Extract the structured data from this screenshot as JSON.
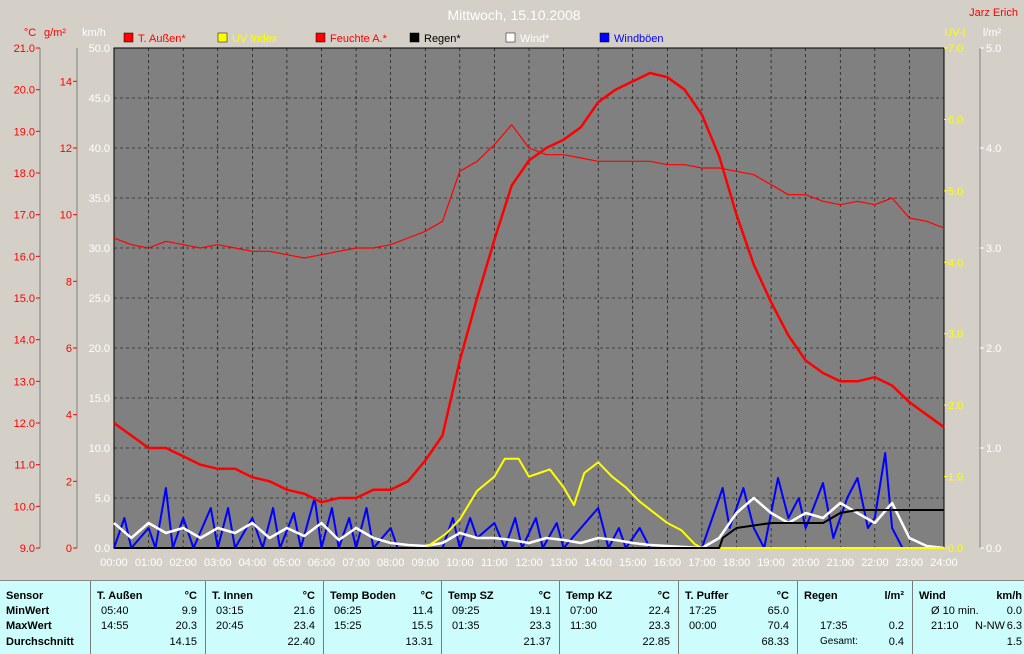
{
  "title": "Mittwoch, 15.10.2008",
  "author": "Jarz Erich",
  "axes": {
    "temp": {
      "unit": "°C",
      "ticks": [
        "21.0",
        "20.0",
        "19.0",
        "18.0",
        "17.0",
        "16.0",
        "15.0",
        "14.0",
        "13.0",
        "12.0",
        "11.0",
        "10.0",
        "9.0"
      ]
    },
    "humid": {
      "unit": "g/m²",
      "ticks": [
        "14",
        "12",
        "10",
        "8",
        "6",
        "4",
        "2",
        "0"
      ]
    },
    "wind": {
      "unit": "km/h",
      "ticks": [
        "50.0",
        "45.0",
        "40.0",
        "35.0",
        "30.0",
        "25.0",
        "20.0",
        "15.0",
        "10.0",
        "5.0",
        "0.0"
      ]
    },
    "uv": {
      "unit": "UV-I",
      "ticks": [
        "7.0",
        "6.0",
        "5.0",
        "4.0",
        "3.0",
        "2.0",
        "1.0",
        "0.0"
      ]
    },
    "rain": {
      "unit": "l/m²",
      "ticks": [
        "5.0",
        "4.0",
        "3.0",
        "2.0",
        "1.0",
        "0.0"
      ]
    },
    "time": [
      "00:00",
      "01:00",
      "02:00",
      "03:00",
      "04:00",
      "05:00",
      "06:00",
      "07:00",
      "08:00",
      "09:00",
      "10:00",
      "11:00",
      "12:00",
      "13:00",
      "14:00",
      "15:00",
      "16:00",
      "17:00",
      "18:00",
      "19:00",
      "20:00",
      "21:00",
      "22:00",
      "23:00",
      "24:00"
    ]
  },
  "legend": [
    {
      "label": "T. Außen*",
      "color": "#ff0000"
    },
    {
      "label": "UV Index",
      "color": "#ffff00"
    },
    {
      "label": "Feuchte A.*",
      "color": "#ff0000"
    },
    {
      "label": "Regen*",
      "color": "#000000"
    },
    {
      "label": "Wind*",
      "color": "#ffffff"
    },
    {
      "label": "Windböen",
      "color": "#0000ff"
    }
  ],
  "colors": {
    "temp": "#ff0000",
    "humid": "#ff0000",
    "uv": "#ffff00",
    "rain": "#000000",
    "wind": "#ffffff",
    "gust": "#0000ff",
    "plot_bg": "#808080",
    "stats_bg": "#ccfcfc"
  },
  "chart_data": {
    "type": "line",
    "title": "Mittwoch, 15.10.2008",
    "x_unit": "hours",
    "xlim": [
      0,
      24
    ],
    "series": [
      {
        "name": "T. Außen*",
        "axis": "temp",
        "color": "#ff0000",
        "points": [
          [
            0,
            12.0
          ],
          [
            0.5,
            11.7
          ],
          [
            1,
            11.4
          ],
          [
            1.5,
            11.4
          ],
          [
            2,
            11.2
          ],
          [
            2.5,
            11.0
          ],
          [
            3,
            10.9
          ],
          [
            3.5,
            10.9
          ],
          [
            4,
            10.7
          ],
          [
            4.5,
            10.6
          ],
          [
            5,
            10.4
          ],
          [
            5.5,
            10.3
          ],
          [
            6,
            10.1
          ],
          [
            6.5,
            10.2
          ],
          [
            7,
            10.2
          ],
          [
            7.5,
            10.4
          ],
          [
            8,
            10.4
          ],
          [
            8.5,
            10.6
          ],
          [
            9,
            11.1
          ],
          [
            9.5,
            11.7
          ],
          [
            10,
            13.5
          ],
          [
            10.5,
            15.0
          ],
          [
            11,
            16.4
          ],
          [
            11.5,
            17.7
          ],
          [
            12,
            18.3
          ],
          [
            12.5,
            18.6
          ],
          [
            13,
            18.8
          ],
          [
            13.5,
            19.1
          ],
          [
            14,
            19.7
          ],
          [
            14.5,
            20.0
          ],
          [
            15,
            20.2
          ],
          [
            15.5,
            20.4
          ],
          [
            16,
            20.3
          ],
          [
            16.5,
            20.0
          ],
          [
            17,
            19.4
          ],
          [
            17.5,
            18.4
          ],
          [
            18,
            17.0
          ],
          [
            18.5,
            15.8
          ],
          [
            19,
            14.9
          ],
          [
            19.5,
            14.1
          ],
          [
            20,
            13.5
          ],
          [
            20.5,
            13.2
          ],
          [
            21,
            13.0
          ],
          [
            21.5,
            13.0
          ],
          [
            22,
            13.1
          ],
          [
            22.5,
            12.9
          ],
          [
            23,
            12.5
          ],
          [
            23.5,
            12.2
          ],
          [
            24,
            11.9
          ]
        ]
      },
      {
        "name": "Feuchte A.*",
        "axis": "humid",
        "color": "#ff0000",
        "points": [
          [
            0,
            9.3
          ],
          [
            0.5,
            9.1
          ],
          [
            1,
            9.0
          ],
          [
            1.5,
            9.2
          ],
          [
            2,
            9.1
          ],
          [
            2.5,
            9.0
          ],
          [
            3,
            9.1
          ],
          [
            3.5,
            9.0
          ],
          [
            4,
            8.9
          ],
          [
            4.5,
            8.9
          ],
          [
            5,
            8.8
          ],
          [
            5.5,
            8.7
          ],
          [
            6,
            8.8
          ],
          [
            6.5,
            8.9
          ],
          [
            7,
            9.0
          ],
          [
            7.5,
            9.0
          ],
          [
            8,
            9.1
          ],
          [
            8.5,
            9.3
          ],
          [
            9,
            9.5
          ],
          [
            9.5,
            9.8
          ],
          [
            10,
            11.3
          ],
          [
            10.5,
            11.6
          ],
          [
            11,
            12.1
          ],
          [
            11.5,
            12.7
          ],
          [
            12,
            12.0
          ],
          [
            12.5,
            11.8
          ],
          [
            13,
            11.8
          ],
          [
            13.5,
            11.7
          ],
          [
            14,
            11.6
          ],
          [
            14.5,
            11.6
          ],
          [
            15,
            11.6
          ],
          [
            15.5,
            11.6
          ],
          [
            16,
            11.5
          ],
          [
            16.5,
            11.5
          ],
          [
            17,
            11.4
          ],
          [
            17.5,
            11.4
          ],
          [
            18,
            11.3
          ],
          [
            18.5,
            11.2
          ],
          [
            19,
            10.9
          ],
          [
            19.5,
            10.6
          ],
          [
            20,
            10.6
          ],
          [
            20.5,
            10.4
          ],
          [
            21,
            10.3
          ],
          [
            21.5,
            10.4
          ],
          [
            22,
            10.3
          ],
          [
            22.5,
            10.5
          ],
          [
            23,
            9.9
          ],
          [
            23.5,
            9.8
          ],
          [
            24,
            9.6
          ]
        ]
      },
      {
        "name": "UV Index",
        "axis": "uv",
        "color": "#ffff00",
        "points": [
          [
            0,
            0
          ],
          [
            9,
            0
          ],
          [
            9.3,
            0.1
          ],
          [
            9.6,
            0.2
          ],
          [
            10,
            0.4
          ],
          [
            10.5,
            0.8
          ],
          [
            11,
            1.0
          ],
          [
            11.3,
            1.25
          ],
          [
            11.7,
            1.25
          ],
          [
            12,
            1.0
          ],
          [
            12.3,
            1.05
          ],
          [
            12.6,
            1.1
          ],
          [
            13,
            0.85
          ],
          [
            13.3,
            0.6
          ],
          [
            13.6,
            1.05
          ],
          [
            14,
            1.2
          ],
          [
            14.4,
            1.0
          ],
          [
            14.8,
            0.85
          ],
          [
            15.2,
            0.65
          ],
          [
            15.6,
            0.5
          ],
          [
            16,
            0.35
          ],
          [
            16.4,
            0.25
          ],
          [
            16.8,
            0.05
          ],
          [
            17,
            0
          ],
          [
            24,
            0
          ]
        ]
      },
      {
        "name": "Regen*",
        "axis": "rain",
        "color": "#000000",
        "points": [
          [
            0,
            0
          ],
          [
            17.5,
            0
          ],
          [
            17.6,
            0.1
          ],
          [
            18,
            0.2
          ],
          [
            19,
            0.25
          ],
          [
            20,
            0.25
          ],
          [
            20.5,
            0.25
          ],
          [
            21,
            0.35
          ],
          [
            21.5,
            0.38
          ],
          [
            22,
            0.38
          ],
          [
            24,
            0.38
          ]
        ]
      },
      {
        "name": "Wind*",
        "axis": "wind",
        "color": "#ffffff",
        "points": [
          [
            0,
            2.5
          ],
          [
            0.5,
            1.0
          ],
          [
            1,
            2.5
          ],
          [
            1.5,
            1.5
          ],
          [
            2,
            2.0
          ],
          [
            2.5,
            1.0
          ],
          [
            3,
            2.0
          ],
          [
            3.5,
            1.5
          ],
          [
            4,
            2.5
          ],
          [
            4.5,
            1.0
          ],
          [
            5,
            2.0
          ],
          [
            5.5,
            1.2
          ],
          [
            6,
            2.5
          ],
          [
            6.5,
            0.8
          ],
          [
            7,
            2.0
          ],
          [
            7.5,
            1.0
          ],
          [
            8,
            0.5
          ],
          [
            8.5,
            0.3
          ],
          [
            9,
            0.2
          ],
          [
            9.5,
            0.5
          ],
          [
            10,
            1.5
          ],
          [
            10.5,
            1.0
          ],
          [
            11,
            1.0
          ],
          [
            11.5,
            0.8
          ],
          [
            12,
            0.5
          ],
          [
            12.5,
            1.0
          ],
          [
            13,
            0.8
          ],
          [
            13.5,
            0.5
          ],
          [
            14,
            1.0
          ],
          [
            14.5,
            0.8
          ],
          [
            15,
            0.5
          ],
          [
            15.5,
            0.3
          ],
          [
            16,
            0.2
          ],
          [
            16.5,
            0.1
          ],
          [
            17,
            0
          ],
          [
            17.5,
            1.0
          ],
          [
            18,
            3.5
          ],
          [
            18.5,
            5.0
          ],
          [
            19,
            3.5
          ],
          [
            19.5,
            2.5
          ],
          [
            20,
            3.5
          ],
          [
            20.5,
            3.0
          ],
          [
            21,
            4.5
          ],
          [
            21.5,
            3.5
          ],
          [
            22,
            2.5
          ],
          [
            22.5,
            4.5
          ],
          [
            23,
            1.0
          ],
          [
            23.5,
            0.2
          ],
          [
            24,
            0
          ]
        ]
      },
      {
        "name": "Windböen",
        "axis": "wind",
        "color": "#0000ff",
        "points": [
          [
            0,
            0
          ],
          [
            0.3,
            3
          ],
          [
            0.5,
            0
          ],
          [
            1,
            2
          ],
          [
            1.2,
            0
          ],
          [
            1.5,
            6
          ],
          [
            1.7,
            0
          ],
          [
            2,
            3
          ],
          [
            2.3,
            0
          ],
          [
            2.8,
            4
          ],
          [
            3,
            0
          ],
          [
            3.3,
            4
          ],
          [
            3.5,
            0
          ],
          [
            4,
            3
          ],
          [
            4.3,
            0
          ],
          [
            4.6,
            4
          ],
          [
            4.8,
            0
          ],
          [
            5.2,
            3.5
          ],
          [
            5.4,
            0
          ],
          [
            5.8,
            5
          ],
          [
            6,
            0
          ],
          [
            6.3,
            4
          ],
          [
            6.5,
            0
          ],
          [
            6.8,
            3
          ],
          [
            7,
            0
          ],
          [
            7.3,
            4
          ],
          [
            7.5,
            0
          ],
          [
            8,
            2
          ],
          [
            8.2,
            0
          ],
          [
            9,
            0
          ],
          [
            9.5,
            0
          ],
          [
            9.8,
            3
          ],
          [
            10,
            0
          ],
          [
            10.3,
            3
          ],
          [
            10.5,
            1
          ],
          [
            11,
            2.5
          ],
          [
            11.3,
            0
          ],
          [
            11.6,
            3
          ],
          [
            11.8,
            0
          ],
          [
            12.2,
            3
          ],
          [
            12.4,
            0
          ],
          [
            12.8,
            2.5
          ],
          [
            13,
            0
          ],
          [
            14,
            4
          ],
          [
            14.3,
            0
          ],
          [
            14.6,
            2
          ],
          [
            14.8,
            0
          ],
          [
            15.2,
            2
          ],
          [
            15.5,
            0
          ],
          [
            16,
            0
          ],
          [
            17,
            0
          ],
          [
            17.3,
            3
          ],
          [
            17.6,
            6
          ],
          [
            17.8,
            2
          ],
          [
            18.2,
            6
          ],
          [
            18.5,
            2
          ],
          [
            18.8,
            0
          ],
          [
            19.2,
            7
          ],
          [
            19.5,
            3
          ],
          [
            19.8,
            5
          ],
          [
            20,
            2
          ],
          [
            20.5,
            6.5
          ],
          [
            20.8,
            1
          ],
          [
            21.2,
            5
          ],
          [
            21.5,
            7
          ],
          [
            21.8,
            2
          ],
          [
            22,
            3
          ],
          [
            22.3,
            9.5
          ],
          [
            22.5,
            2
          ],
          [
            22.8,
            0
          ],
          [
            24,
            0
          ]
        ]
      }
    ]
  },
  "stats": {
    "row_labels": [
      "Sensor",
      "MinWert",
      "MaxWert",
      "Durchschnitt"
    ],
    "columns": [
      {
        "name": "T. Außen",
        "unit": "°C",
        "min_time": "05:40",
        "min_val": "9.9",
        "max_time": "14:55",
        "max_val": "20.3",
        "avg": "14.15"
      },
      {
        "name": "T. Innen",
        "unit": "°C",
        "min_time": "03:15",
        "min_val": "21.6",
        "max_time": "20:45",
        "max_val": "23.4",
        "avg": "22.40"
      },
      {
        "name": "Temp Boden",
        "unit": "°C",
        "min_time": "06:25",
        "min_val": "11.4",
        "max_time": "15:25",
        "max_val": "15.5",
        "avg": "13.31"
      },
      {
        "name": "Temp SZ",
        "unit": "°C",
        "min_time": "09:25",
        "min_val": "19.1",
        "max_time": "01:35",
        "max_val": "23.3",
        "avg": "21.37"
      },
      {
        "name": "Temp KZ",
        "unit": "°C",
        "min_time": "07:00",
        "min_val": "22.4",
        "max_time": "11:30",
        "max_val": "23.3",
        "avg": "22.85"
      },
      {
        "name": "T. Puffer",
        "unit": "°C",
        "min_time": "17:25",
        "min_val": "65.0",
        "max_time": "00:00",
        "max_val": "70.4",
        "avg": "68.33"
      }
    ],
    "regen": {
      "name": "Regen",
      "unit": "l/m²",
      "max_time": "17:35",
      "max_val": "0.2",
      "total_label": "Gesamt:",
      "total_val": "0.4"
    },
    "wind": {
      "name": "Wind",
      "unit": "km/h",
      "min_label": "Ø 10 min.",
      "min_val": "0.0",
      "max_time": "21:10",
      "max_dir": "N-NW",
      "max_val": "6.3",
      "avg": "1.5"
    }
  }
}
